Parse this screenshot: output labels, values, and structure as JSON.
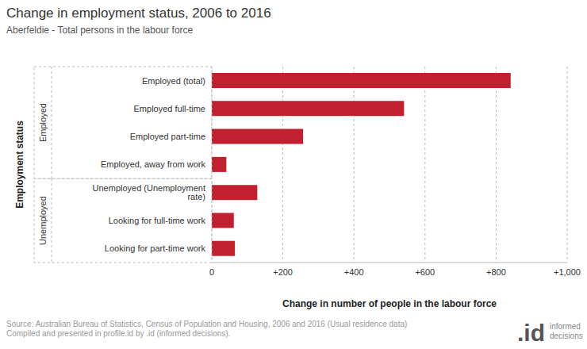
{
  "chart_data": {
    "type": "bar",
    "orientation": "horizontal",
    "title": "Change in employment status, 2006 to 2016",
    "subtitle": "Aberfeldie - Total persons in the labour force",
    "x_label": "Change in number of people in the labour force",
    "y_label": "Employment status",
    "categories": [
      "Employed (total)",
      "Employed full-time",
      "Employed part-time",
      "Employed, away from work",
      "Unemployed (Unemployment rate)",
      "Looking for full-time work",
      "Looking for part-time work"
    ],
    "category_groups": [
      "Employed",
      "Employed",
      "Employed",
      "Employed",
      "Unemployed",
      "Unemployed",
      "Unemployed"
    ],
    "values": [
      841,
      541,
      257,
      41,
      128,
      62,
      65
    ],
    "color": "#c1202f",
    "xlim": [
      0,
      1000
    ],
    "xticks": [
      0,
      {
        "value": 200,
        "label": "+200"
      },
      {
        "value": 400,
        "label": "+400"
      },
      {
        "value": 600,
        "label": "+600"
      },
      {
        "value": 800,
        "label": "+800"
      },
      {
        "value": 1000,
        "label": "+1,000"
      }
    ],
    "grid": true,
    "source": [
      "Source: Australian Bureau of Statistics, Census of Population and Housing, 2006 and 2016 (Usual residence data)",
      "Compiled and presented in profile.id by .id (informed decisions)."
    ],
    "logo": {
      "mark": ".id",
      "text": [
        "informed",
        "decisions"
      ]
    }
  }
}
